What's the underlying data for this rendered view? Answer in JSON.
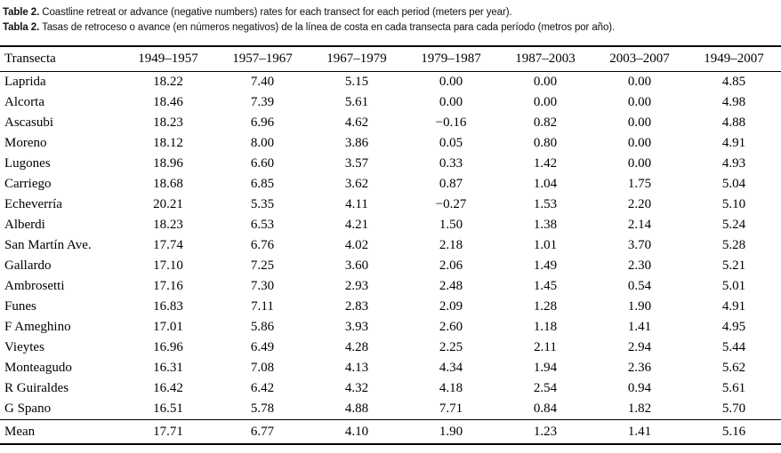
{
  "caption": {
    "en": {
      "label": "Table 2.",
      "text": "Coastline retreat or advance (negative numbers) rates for each transect for each period (meters per year)."
    },
    "es": {
      "label": "Tabla 2.",
      "text": "Tasas de retroceso o avance (en números negativos) de la línea de costa en cada transecta para cada período (metros por año)."
    }
  },
  "table": {
    "columns": [
      "Transecta",
      "1949–1957",
      "1957–1967",
      "1967–1979",
      "1979–1987",
      "1987–2003",
      "2003–2007",
      "1949–2007"
    ],
    "rows": [
      {
        "name": "Laprida",
        "values": [
          "18.22",
          "7.40",
          "5.15",
          "0.00",
          "0.00",
          "0.00",
          "4.85"
        ]
      },
      {
        "name": "Alcorta",
        "values": [
          "18.46",
          "7.39",
          "5.61",
          "0.00",
          "0.00",
          "0.00",
          "4.98"
        ]
      },
      {
        "name": "Ascasubi",
        "values": [
          "18.23",
          "6.96",
          "4.62",
          "−0.16",
          "0.82",
          "0.00",
          "4.88"
        ]
      },
      {
        "name": "Moreno",
        "values": [
          "18.12",
          "8.00",
          "3.86",
          "0.05",
          "0.80",
          "0.00",
          "4.91"
        ]
      },
      {
        "name": "Lugones",
        "values": [
          "18.96",
          "6.60",
          "3.57",
          "0.33",
          "1.42",
          "0.00",
          "4.93"
        ]
      },
      {
        "name": "Carriego",
        "values": [
          "18.68",
          "6.85",
          "3.62",
          "0.87",
          "1.04",
          "1.75",
          "5.04"
        ]
      },
      {
        "name": "Echeverría",
        "values": [
          "20.21",
          "5.35",
          "4.11",
          "−0.27",
          "1.53",
          "2.20",
          "5.10"
        ]
      },
      {
        "name": "Alberdi",
        "values": [
          "18.23",
          "6.53",
          "4.21",
          "1.50",
          "1.38",
          "2.14",
          "5.24"
        ]
      },
      {
        "name": "San Martín Ave.",
        "values": [
          "17.74",
          "6.76",
          "4.02",
          "2.18",
          "1.01",
          "3.70",
          "5.28"
        ]
      },
      {
        "name": "Gallardo",
        "values": [
          "17.10",
          "7.25",
          "3.60",
          "2.06",
          "1.49",
          "2.30",
          "5.21"
        ]
      },
      {
        "name": "Ambrosetti",
        "values": [
          "17.16",
          "7.30",
          "2.93",
          "2.48",
          "1.45",
          "0.54",
          "5.01"
        ]
      },
      {
        "name": "Funes",
        "values": [
          "16.83",
          "7.11",
          "2.83",
          "2.09",
          "1.28",
          "1.90",
          "4.91"
        ]
      },
      {
        "name": "F Ameghino",
        "values": [
          "17.01",
          "5.86",
          "3.93",
          "2.60",
          "1.18",
          "1.41",
          "4.95"
        ]
      },
      {
        "name": "Vieytes",
        "values": [
          "16.96",
          "6.49",
          "4.28",
          "2.25",
          "2.11",
          "2.94",
          "5.44"
        ]
      },
      {
        "name": "Monteagudo",
        "values": [
          "16.31",
          "7.08",
          "4.13",
          "4.34",
          "1.94",
          "2.36",
          "5.62"
        ]
      },
      {
        "name": "R Guiraldes",
        "values": [
          "16.42",
          "6.42",
          "4.32",
          "4.18",
          "2.54",
          "0.94",
          "5.61"
        ]
      },
      {
        "name": "G Spano",
        "values": [
          "16.51",
          "5.78",
          "4.88",
          "7.71",
          "0.84",
          "1.82",
          "5.70"
        ]
      }
    ],
    "mean_row": {
      "name": "Mean",
      "values": [
        "17.71",
        "6.77",
        "4.10",
        "1.90",
        "1.23",
        "1.41",
        "5.16"
      ]
    }
  }
}
